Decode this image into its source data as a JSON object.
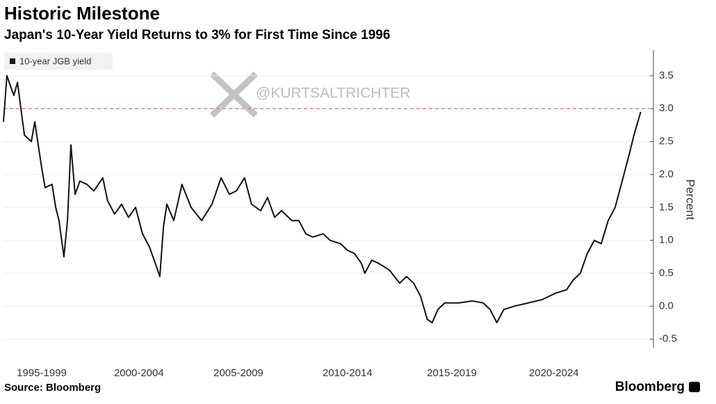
{
  "chart_data": {
    "type": "line",
    "title": "Historic Milestone",
    "subtitle": "Japan's 10-Year Yield Returns to 3% for First Time Since 1996",
    "y_axis_label": "Percent",
    "source": "Source: Bloomberg",
    "brand": "Bloomberg",
    "watermark": "@KURTSALTRICHTER",
    "legend_position": "upper left",
    "grid": true,
    "x": [
      1995.6,
      1995.76,
      1996.09,
      1996.26,
      1996.59,
      1996.92,
      1997.08,
      1997.41,
      1997.57,
      1997.9,
      1998.07,
      1998.23,
      1998.46,
      1998.63,
      1998.79,
      1998.99,
      1999.22,
      1999.55,
      1999.88,
      2000.3,
      2000.53,
      2000.86,
      2001.19,
      2001.52,
      2001.85,
      2002.18,
      2002.51,
      2002.84,
      2003.0,
      2003.17,
      2003.33,
      2003.66,
      2004.05,
      2004.48,
      2004.98,
      2005.47,
      2005.9,
      2006.29,
      2006.62,
      2007.01,
      2007.34,
      2007.77,
      2008.1,
      2008.43,
      2008.76,
      2009.25,
      2009.58,
      2009.91,
      2010.24,
      2010.73,
      2011.06,
      2011.55,
      2011.88,
      2012.21,
      2012.54,
      2012.7,
      2013.03,
      2013.36,
      2013.86,
      2014.35,
      2014.68,
      2015.01,
      2015.34,
      2015.66,
      2015.89,
      2016.16,
      2016.49,
      2017.15,
      2017.8,
      2018.3,
      2018.63,
      2018.95,
      2019.28,
      2019.78,
      2020.44,
      2021.09,
      2021.75,
      2022.25,
      2022.57,
      2022.9,
      2023.23,
      2023.56,
      2023.89,
      2024.22,
      2024.55,
      2024.88,
      2025.21,
      2025.44,
      2025.76
    ],
    "series": [
      {
        "name": "10-year JGB yield",
        "color": "#111111",
        "values": [
          2.8,
          3.5,
          3.2,
          3.4,
          2.6,
          2.5,
          2.8,
          2.1,
          1.8,
          1.85,
          1.5,
          1.3,
          0.75,
          1.3,
          2.45,
          1.7,
          1.9,
          1.85,
          1.75,
          1.95,
          1.6,
          1.4,
          1.55,
          1.35,
          1.5,
          1.1,
          0.9,
          0.6,
          0.45,
          1.2,
          1.55,
          1.3,
          1.85,
          1.5,
          1.3,
          1.55,
          1.95,
          1.7,
          1.75,
          1.95,
          1.55,
          1.45,
          1.65,
          1.35,
          1.45,
          1.3,
          1.3,
          1.1,
          1.05,
          1.1,
          1.0,
          0.95,
          0.85,
          0.8,
          0.65,
          0.5,
          0.7,
          0.65,
          0.55,
          0.35,
          0.45,
          0.35,
          0.15,
          -0.2,
          -0.25,
          -0.05,
          0.05,
          0.05,
          0.08,
          0.05,
          -0.05,
          -0.25,
          -0.05,
          0.0,
          0.05,
          0.1,
          0.2,
          0.25,
          0.4,
          0.5,
          0.8,
          1.0,
          0.95,
          1.3,
          1.5,
          1.9,
          2.3,
          2.6,
          2.95
        ]
      }
    ],
    "reference_line": {
      "value": 3,
      "color": "#e8808f"
    },
    "xlim": [
      1995.6,
      2026.0
    ],
    "xticks": [
      {
        "value": 1997.41,
        "label": "1995-1999"
      },
      {
        "value": 2002.01,
        "label": "2000-2004"
      },
      {
        "value": 2006.72,
        "label": "2005-2009"
      },
      {
        "value": 2011.88,
        "label": "2010-2014"
      },
      {
        "value": 2016.82,
        "label": "2015-2019"
      },
      {
        "value": 2021.65,
        "label": "2020-2024"
      }
    ],
    "ylim": [
      -0.63,
      3.89
    ],
    "yticks": [
      -0.5,
      {
        "value": 0,
        "label": "0.0"
      },
      0.5,
      {
        "value": 1,
        "label": "1.0"
      },
      1.5,
      {
        "value": 2,
        "label": "2.0"
      },
      2.5,
      {
        "value": 3,
        "label": "3.0"
      },
      3.5
    ]
  }
}
